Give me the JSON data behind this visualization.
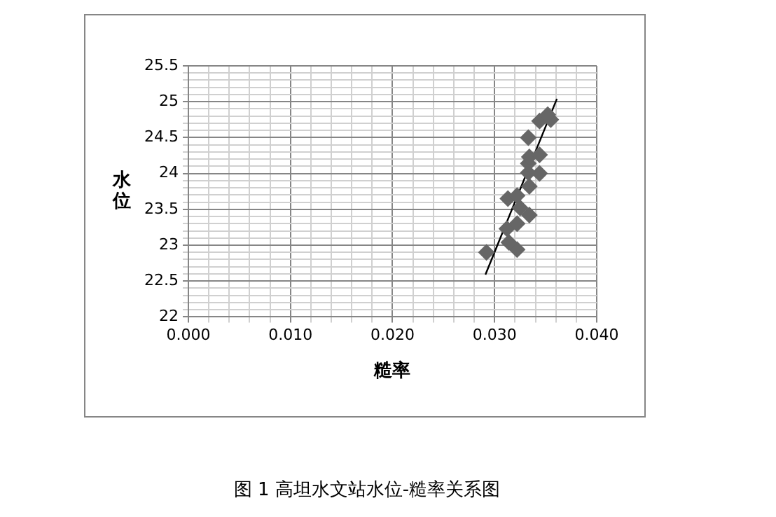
{
  "chart_data": {
    "type": "scatter",
    "xlabel": "糙率",
    "ylabel": "水位",
    "annotations": [
      "图 1 高坦水文站水位-糙率关系图"
    ],
    "xlim": [
      0,
      0.04
    ],
    "ylim": [
      22,
      25.5
    ],
    "xticks": [
      {
        "value": 0,
        "label": "0.000"
      },
      {
        "value": 0.002,
        "label": null
      },
      {
        "value": 0.004,
        "label": null
      },
      {
        "value": 0.006,
        "label": null
      },
      {
        "value": 0.008,
        "label": null
      },
      {
        "value": 0.01,
        "label": "0.010"
      },
      {
        "value": 0.012,
        "label": null
      },
      {
        "value": 0.014,
        "label": null
      },
      {
        "value": 0.016,
        "label": null
      },
      {
        "value": 0.018,
        "label": null
      },
      {
        "value": 0.02,
        "label": "0.020"
      },
      {
        "value": 0.022,
        "label": null
      },
      {
        "value": 0.024,
        "label": null
      },
      {
        "value": 0.026,
        "label": null
      },
      {
        "value": 0.028,
        "label": null
      },
      {
        "value": 0.03,
        "label": "0.030"
      },
      {
        "value": 0.032,
        "label": null
      },
      {
        "value": 0.034,
        "label": null
      },
      {
        "value": 0.036,
        "label": null
      },
      {
        "value": 0.038,
        "label": null
      },
      {
        "value": 0.04,
        "label": "0.040"
      }
    ],
    "yticks": [
      22,
      {
        "value": 22.1,
        "label": null
      },
      {
        "value": 22.2,
        "label": null
      },
      {
        "value": 22.3,
        "label": null
      },
      {
        "value": 22.4,
        "label": null
      },
      22.5,
      {
        "value": 22.6,
        "label": null
      },
      {
        "value": 22.7,
        "label": null
      },
      {
        "value": 22.8,
        "label": null
      },
      {
        "value": 22.9,
        "label": null
      },
      23,
      {
        "value": 23.1,
        "label": null
      },
      {
        "value": 23.2,
        "label": null
      },
      {
        "value": 23.3,
        "label": null
      },
      {
        "value": 23.4,
        "label": null
      },
      23.5,
      {
        "value": 23.6,
        "label": null
      },
      {
        "value": 23.7,
        "label": null
      },
      {
        "value": 23.8,
        "label": null
      },
      {
        "value": 23.9,
        "label": null
      },
      24,
      {
        "value": 24.1,
        "label": null
      },
      {
        "value": 24.2,
        "label": null
      },
      {
        "value": 24.3,
        "label": null
      },
      {
        "value": 24.4,
        "label": null
      },
      24.5,
      {
        "value": 24.6,
        "label": null
      },
      {
        "value": 24.7,
        "label": null
      },
      {
        "value": 24.8,
        "label": null
      },
      {
        "value": 24.9,
        "label": null
      },
      25,
      {
        "value": 25.1,
        "label": null
      },
      {
        "value": 25.2,
        "label": null
      },
      {
        "value": 25.3,
        "label": null
      },
      {
        "value": 25.4,
        "label": null
      },
      25.5
    ],
    "grid": true,
    "legend": false,
    "series": [
      {
        "color": "#666666",
        "marker": "diamond",
        "x": [
          0.0292,
          0.0322,
          0.0314,
          0.0312,
          0.0322,
          0.0334,
          0.0325,
          0.0313,
          0.0322,
          0.0334,
          0.0344,
          0.0333,
          0.0333,
          0.0334,
          0.0344,
          0.0333,
          0.0344,
          0.0355,
          0.0352
        ],
        "values": [
          22.9,
          22.94,
          23.04,
          23.23,
          23.3,
          23.42,
          23.52,
          23.65,
          23.69,
          23.82,
          24.0,
          24.01,
          24.14,
          24.23,
          24.26,
          24.5,
          24.73,
          24.75,
          24.82
        ]
      },
      {
        "type": "line",
        "color": "#000000",
        "marker": "none",
        "x": [
          0.0291,
          0.0361
        ],
        "values": [
          22.59,
          25.04
        ]
      }
    ]
  }
}
